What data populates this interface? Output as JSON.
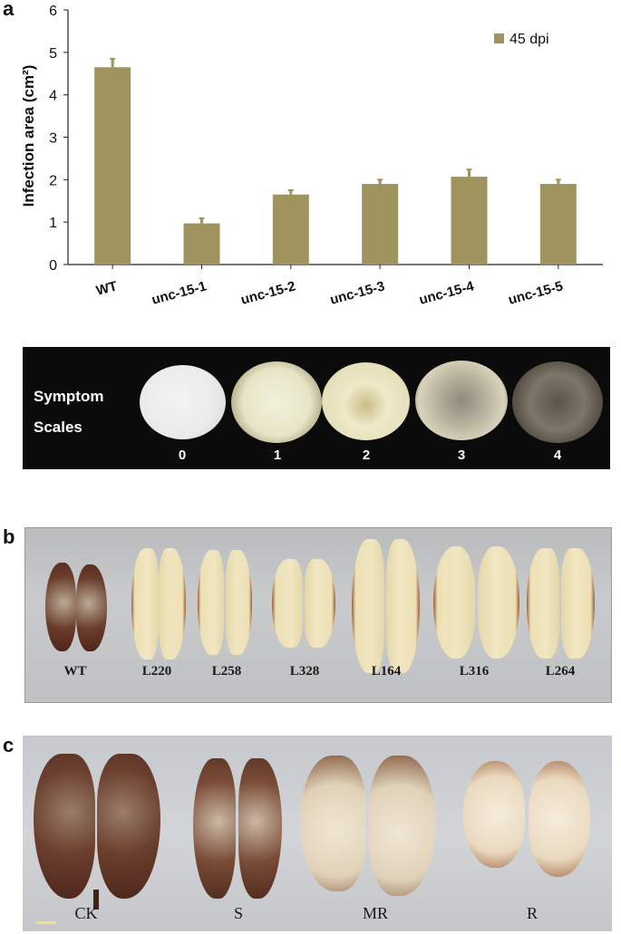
{
  "panels": {
    "a": "a",
    "b": "b",
    "c": "c"
  },
  "chart_data": {
    "type": "bar",
    "categories": [
      "WT",
      "unc-15-1",
      "unc-15-2",
      "unc-15-3",
      "unc-15-4",
      "unc-15-5"
    ],
    "series": [
      {
        "name": "45 dpi",
        "values": [
          4.65,
          0.97,
          1.65,
          1.9,
          2.07,
          1.9
        ],
        "errors": [
          0.2,
          0.12,
          0.1,
          0.1,
          0.17,
          0.1
        ]
      }
    ],
    "ylabel": "Infection area (cm²)",
    "ylim": [
      0,
      6
    ],
    "yticks": [
      0,
      1,
      2,
      3,
      4,
      5,
      6
    ],
    "grid": false,
    "legend": "top-right",
    "bar_color": "#a0945e",
    "error_color": "#a0945e"
  },
  "symptom": {
    "title_line1": "Symptom",
    "title_line2": "Scales",
    "scales": [
      "0",
      "1",
      "2",
      "3",
      "4"
    ]
  },
  "panel_b": {
    "labels": [
      "WT",
      "L220",
      "L258",
      "L328",
      "L164",
      "L316",
      "L264"
    ]
  },
  "panel_c": {
    "labels": [
      "CK",
      "S",
      "MR",
      "R"
    ]
  }
}
